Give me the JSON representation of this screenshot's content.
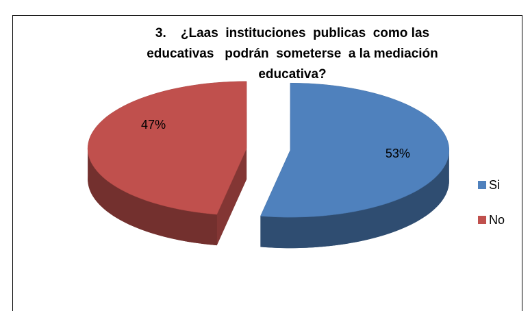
{
  "chart_data": {
    "type": "pie3d",
    "title": "3.    ¿Laas  instituciones  publicas  como las educativas   podrán  someterse  a la mediación educativa?",
    "categories": [
      "Si",
      "No"
    ],
    "values": [
      53,
      47
    ],
    "value_labels": [
      "53%",
      "47%"
    ],
    "colors": [
      "#4f81bd",
      "#c0504d"
    ],
    "legend": "right"
  }
}
